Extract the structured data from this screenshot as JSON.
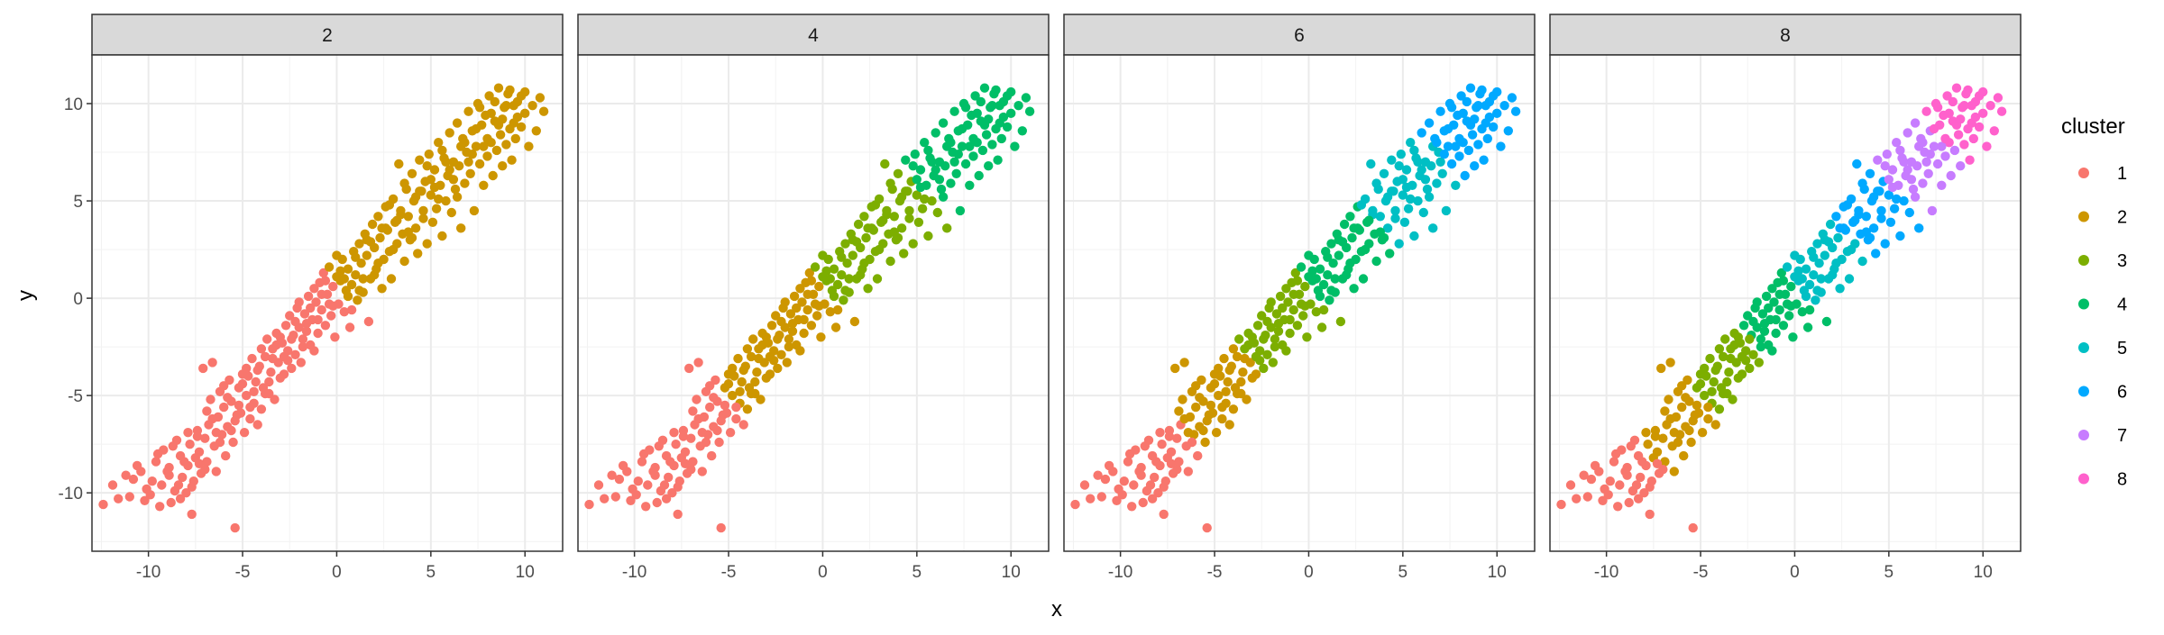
{
  "chart_data": {
    "type": "scatter",
    "title": "",
    "xlabel": "x",
    "ylabel": "y",
    "xlim": [
      -13,
      12
    ],
    "ylim": [
      -13,
      12.5
    ],
    "x_ticks": [
      -10,
      -5,
      0,
      5,
      10
    ],
    "y_ticks": [
      -10,
      -5,
      0,
      5,
      10
    ],
    "x_tick_labels": [
      "-10",
      "-5",
      "0",
      "5",
      "10"
    ],
    "y_tick_labels": [
      "-10",
      "-5",
      "0",
      "5",
      "10"
    ],
    "grid": true,
    "legend": {
      "title": "cluster",
      "placement": "right",
      "entries": [
        {
          "label": "1",
          "color": "#F8766D"
        },
        {
          "label": "2",
          "color": "#CD9600"
        },
        {
          "label": "3",
          "color": "#7CAE00"
        },
        {
          "label": "4",
          "color": "#00BE67"
        },
        {
          "label": "5",
          "color": "#00BFC4"
        },
        {
          "label": "6",
          "color": "#00A9FF"
        },
        {
          "label": "7",
          "color": "#C77CFF"
        },
        {
          "label": "8",
          "color": "#FF61CC"
        }
      ]
    },
    "facets": [
      {
        "strip": "2",
        "k": 2
      },
      {
        "strip": "4",
        "k": 4
      },
      {
        "strip": "6",
        "k": 6
      },
      {
        "strip": "8",
        "k": 8
      }
    ],
    "points": [
      [
        -12.4,
        -10.6
      ],
      [
        -11.6,
        -10.3
      ],
      [
        -11.2,
        -9.1
      ],
      [
        -10.8,
        -9.3
      ],
      [
        -10.4,
        -8.9
      ],
      [
        -10.1,
        -9.8
      ],
      [
        -9.9,
        -10.1
      ],
      [
        -9.6,
        -8.4
      ],
      [
        -9.3,
        -9.6
      ],
      [
        -9.2,
        -7.8
      ],
      [
        -8.9,
        -8.7
      ],
      [
        -8.8,
        -10.5
      ],
      [
        -8.6,
        -9.9
      ],
      [
        -8.5,
        -7.3
      ],
      [
        -8.3,
        -8.1
      ],
      [
        -8.2,
        -9.2
      ],
      [
        -8.0,
        -10.0
      ],
      [
        -7.9,
        -8.6
      ],
      [
        -7.8,
        -7.5
      ],
      [
        -7.7,
        -11.1
      ],
      [
        -7.6,
        -9.4
      ],
      [
        -7.5,
        -8.2
      ],
      [
        -7.4,
        -6.8
      ],
      [
        -7.3,
        -7.9
      ],
      [
        -7.2,
        -9.0
      ],
      [
        -7.1,
        -3.6
      ],
      [
        -7.0,
        -7.2
      ],
      [
        -6.9,
        -8.4
      ],
      [
        -6.8,
        -6.5
      ],
      [
        -6.7,
        -5.2
      ],
      [
        -6.6,
        -3.3
      ],
      [
        -6.5,
        -7.6
      ],
      [
        -6.4,
        -8.9
      ],
      [
        -6.3,
        -6.1
      ],
      [
        -6.2,
        -4.8
      ],
      [
        -6.1,
        -7.0
      ],
      [
        -6.0,
        -5.6
      ],
      [
        -5.9,
        -8.1
      ],
      [
        -5.8,
        -6.6
      ],
      [
        -5.7,
        -4.2
      ],
      [
        -5.6,
        -5.3
      ],
      [
        -5.5,
        -7.4
      ],
      [
        -5.4,
        -11.8
      ],
      [
        -5.3,
        -6.0
      ],
      [
        -5.2,
        -4.6
      ],
      [
        -5.1,
        -5.9
      ],
      [
        -5.0,
        -3.9
      ],
      [
        -4.9,
        -6.9
      ],
      [
        -4.8,
        -5.0
      ],
      [
        -4.7,
        -4.0
      ],
      [
        -4.6,
        -6.2
      ],
      [
        -4.5,
        -3.1
      ],
      [
        -4.4,
        -5.4
      ],
      [
        -4.3,
        -4.3
      ],
      [
        -4.2,
        -6.5
      ],
      [
        -4.1,
        -3.5
      ],
      [
        -4.0,
        -5.7
      ],
      [
        -3.9,
        -4.6
      ],
      [
        -3.8,
        -3.0
      ],
      [
        -3.7,
        -2.1
      ],
      [
        -3.6,
        -4.9
      ],
      [
        -3.5,
        -3.8
      ],
      [
        -3.4,
        -2.6
      ],
      [
        -3.3,
        -5.2
      ],
      [
        -3.2,
        -1.8
      ],
      [
        -3.1,
        -3.3
      ],
      [
        -3.0,
        -4.1
      ],
      [
        -2.9,
        -2.3
      ],
      [
        -2.8,
        -3.0
      ],
      [
        -2.7,
        -1.4
      ],
      [
        -2.6,
        -2.7
      ],
      [
        -2.5,
        -0.9
      ],
      [
        -2.4,
        -3.6
      ],
      [
        -2.3,
        -1.9
      ],
      [
        -2.2,
        -2.9
      ],
      [
        -2.1,
        -0.5
      ],
      [
        -2.0,
        -1.5
      ],
      [
        -1.9,
        -3.3
      ],
      [
        -1.8,
        -2.1
      ],
      [
        -1.7,
        -0.8
      ],
      [
        -1.6,
        -1.7
      ],
      [
        -1.5,
        0.1
      ],
      [
        -1.4,
        -2.4
      ],
      [
        -1.3,
        -1.1
      ],
      [
        -1.2,
        0.5
      ],
      [
        -1.1,
        -0.2
      ],
      [
        -1.0,
        -1.8
      ],
      [
        -0.9,
        0.8
      ],
      [
        -0.8,
        -0.6
      ],
      [
        -0.7,
        1.3
      ],
      [
        -0.6,
        -1.4
      ],
      [
        -0.5,
        0.2
      ],
      [
        -0.4,
        1.6
      ],
      [
        -0.3,
        -0.9
      ],
      [
        -0.2,
        0.6
      ],
      [
        -0.1,
        -2.0
      ],
      [
        0.0,
        1.1
      ],
      [
        0.1,
        -0.3
      ],
      [
        0.2,
        0.9
      ],
      [
        0.3,
        2.0
      ],
      [
        0.4,
        -0.7
      ],
      [
        0.5,
        0.4
      ],
      [
        0.6,
        1.5
      ],
      [
        0.7,
        -1.5
      ],
      [
        0.8,
        0.7
      ],
      [
        0.9,
        2.4
      ],
      [
        1.0,
        1.2
      ],
      [
        1.1,
        -0.1
      ],
      [
        1.2,
        2.8
      ],
      [
        1.3,
        1.8
      ],
      [
        1.4,
        0.3
      ],
      [
        1.5,
        3.3
      ],
      [
        1.6,
        2.2
      ],
      [
        1.7,
        -1.2
      ],
      [
        1.8,
        1.0
      ],
      [
        1.9,
        3.8
      ],
      [
        2.0,
        2.6
      ],
      [
        2.1,
        1.5
      ],
      [
        2.2,
        4.2
      ],
      [
        2.3,
        3.1
      ],
      [
        2.4,
        0.5
      ],
      [
        2.5,
        2.0
      ],
      [
        2.6,
        4.7
      ],
      [
        2.7,
        3.5
      ],
      [
        2.8,
        2.4
      ],
      [
        2.9,
        1.0
      ],
      [
        3.0,
        5.1
      ],
      [
        3.1,
        3.9
      ],
      [
        3.2,
        2.8
      ],
      [
        3.3,
        6.9
      ],
      [
        3.4,
        4.5
      ],
      [
        3.5,
        3.3
      ],
      [
        3.6,
        1.9
      ],
      [
        3.7,
        5.6
      ],
      [
        3.8,
        4.2
      ],
      [
        3.9,
        3.0
      ],
      [
        4.0,
        6.4
      ],
      [
        4.1,
        5.0
      ],
      [
        4.2,
        3.6
      ],
      [
        4.3,
        2.3
      ],
      [
        4.4,
        7.1
      ],
      [
        4.5,
        5.5
      ],
      [
        4.6,
        4.1
      ],
      [
        4.7,
        6.0
      ],
      [
        4.8,
        2.8
      ],
      [
        4.9,
        7.4
      ],
      [
        5.0,
        5.3
      ],
      [
        5.1,
        3.9
      ],
      [
        5.2,
        6.6
      ],
      [
        5.3,
        4.6
      ],
      [
        5.4,
        8.0
      ],
      [
        5.5,
        5.8
      ],
      [
        5.6,
        3.2
      ],
      [
        5.7,
        7.2
      ],
      [
        5.8,
        5.0
      ],
      [
        5.9,
        6.3
      ],
      [
        6.0,
        8.5
      ],
      [
        6.1,
        4.4
      ],
      [
        6.2,
        7.0
      ],
      [
        6.3,
        5.6
      ],
      [
        6.4,
        9.0
      ],
      [
        6.5,
        6.8
      ],
      [
        6.6,
        3.6
      ],
      [
        6.7,
        8.2
      ],
      [
        6.8,
        5.9
      ],
      [
        6.9,
        7.5
      ],
      [
        7.0,
        9.6
      ],
      [
        7.1,
        6.4
      ],
      [
        7.2,
        8.6
      ],
      [
        7.3,
        4.5
      ],
      [
        7.4,
        7.8
      ],
      [
        7.5,
        10.0
      ],
      [
        7.6,
        6.9
      ],
      [
        7.7,
        8.9
      ],
      [
        7.8,
        5.8
      ],
      [
        7.9,
        9.4
      ],
      [
        8.0,
        7.3
      ],
      [
        8.1,
        10.4
      ],
      [
        8.2,
        8.0
      ],
      [
        8.3,
        6.3
      ],
      [
        8.4,
        9.1
      ],
      [
        8.5,
        7.6
      ],
      [
        8.6,
        10.8
      ],
      [
        8.7,
        8.4
      ],
      [
        8.8,
        6.8
      ],
      [
        8.9,
        9.8
      ],
      [
        9.0,
        7.9
      ],
      [
        9.1,
        10.5
      ],
      [
        9.2,
        8.7
      ],
      [
        9.3,
        7.1
      ],
      [
        9.4,
        9.9
      ],
      [
        9.5,
        8.2
      ],
      [
        9.6,
        10.1
      ],
      [
        9.8,
        8.8
      ],
      [
        10.0,
        9.5
      ],
      [
        10.2,
        7.8
      ],
      [
        10.4,
        9.9
      ],
      [
        10.6,
        8.6
      ],
      [
        10.8,
        10.3
      ],
      [
        11.0,
        9.6
      ],
      [
        -11.9,
        -9.6
      ],
      [
        -11.0,
        -10.2
      ],
      [
        -10.6,
        -8.6
      ],
      [
        -9.8,
        -9.4
      ],
      [
        -9.4,
        -10.7
      ],
      [
        -9.0,
        -8.9
      ],
      [
        -8.7,
        -7.6
      ],
      [
        -8.4,
        -9.6
      ],
      [
        -8.1,
        -8.4
      ],
      [
        -7.7,
        -9.7
      ],
      [
        -7.4,
        -7.1
      ],
      [
        -7.0,
        -8.8
      ],
      [
        -6.6,
        -6.2
      ],
      [
        -6.2,
        -7.4
      ],
      [
        -5.8,
        -5.1
      ],
      [
        -5.4,
        -6.3
      ],
      [
        -5.0,
        -4.4
      ],
      [
        -4.6,
        -5.6
      ],
      [
        -4.2,
        -3.7
      ],
      [
        -3.8,
        -4.9
      ],
      [
        -3.4,
        -3.1
      ],
      [
        -3.0,
        -2.0
      ],
      [
        -2.6,
        -3.2
      ],
      [
        -2.2,
        -1.2
      ],
      [
        -1.8,
        -2.5
      ],
      [
        -1.4,
        -0.5
      ],
      [
        -1.0,
        -1.1
      ],
      [
        -0.6,
        0.9
      ],
      [
        -0.2,
        -0.4
      ],
      [
        0.2,
        1.4
      ],
      [
        0.6,
        0.1
      ],
      [
        1.0,
        2.1
      ],
      [
        1.4,
        1.0
      ],
      [
        1.8,
        2.9
      ],
      [
        2.2,
        1.8
      ],
      [
        2.6,
        3.6
      ],
      [
        3.0,
        2.5
      ],
      [
        3.4,
        4.3
      ],
      [
        3.8,
        3.4
      ],
      [
        4.2,
        5.2
      ],
      [
        4.6,
        4.5
      ],
      [
        5.0,
        6.1
      ],
      [
        5.4,
        5.1
      ],
      [
        5.8,
        7.0
      ],
      [
        6.2,
        6.1
      ],
      [
        6.6,
        7.8
      ],
      [
        7.0,
        7.0
      ],
      [
        7.4,
        8.7
      ],
      [
        7.8,
        7.8
      ],
      [
        8.2,
        9.5
      ],
      [
        8.6,
        8.9
      ],
      [
        9.0,
        9.9
      ],
      [
        9.4,
        9.0
      ],
      [
        9.8,
        10.4
      ],
      [
        -10.2,
        -10.4
      ],
      [
        -9.5,
        -8.0
      ],
      [
        -8.9,
        -9.1
      ],
      [
        -8.3,
        -10.3
      ],
      [
        -7.9,
        -6.9
      ],
      [
        -7.3,
        -8.5
      ],
      [
        -6.9,
        -5.8
      ],
      [
        -6.4,
        -6.9
      ],
      [
        -6.0,
        -4.5
      ],
      [
        -5.6,
        -6.8
      ],
      [
        -5.2,
        -5.5
      ],
      [
        -4.8,
        -3.6
      ],
      [
        -4.4,
        -4.8
      ],
      [
        -4.0,
        -2.6
      ],
      [
        -3.6,
        -4.3
      ],
      [
        -3.2,
        -2.4
      ],
      [
        -2.8,
        -3.9
      ],
      [
        -2.4,
        -2.1
      ],
      [
        -2.0,
        -0.2
      ],
      [
        -1.6,
        -1.3
      ],
      [
        -1.2,
        -2.7
      ],
      [
        -0.8,
        0.2
      ],
      [
        -0.4,
        -0.3
      ],
      [
        0.0,
        2.2
      ],
      [
        0.4,
        1.0
      ],
      [
        0.8,
        -0.6
      ],
      [
        1.2,
        0.4
      ],
      [
        1.6,
        3.0
      ],
      [
        2.0,
        1.2
      ],
      [
        2.4,
        3.6
      ],
      [
        2.8,
        4.8
      ],
      [
        3.2,
        4.0
      ],
      [
        3.6,
        5.9
      ],
      [
        4.0,
        3.1
      ],
      [
        4.4,
        5.5
      ],
      [
        4.8,
        6.8
      ],
      [
        5.2,
        5.7
      ],
      [
        5.6,
        7.6
      ],
      [
        6.0,
        6.6
      ],
      [
        6.4,
        5.2
      ],
      [
        6.8,
        8.0
      ],
      [
        7.2,
        7.4
      ],
      [
        7.6,
        9.8
      ],
      [
        8.0,
        8.2
      ],
      [
        8.4,
        10.1
      ],
      [
        8.8,
        9.2
      ],
      [
        9.2,
        10.7
      ],
      [
        9.6,
        9.3
      ],
      [
        10.0,
        10.6
      ]
    ]
  }
}
